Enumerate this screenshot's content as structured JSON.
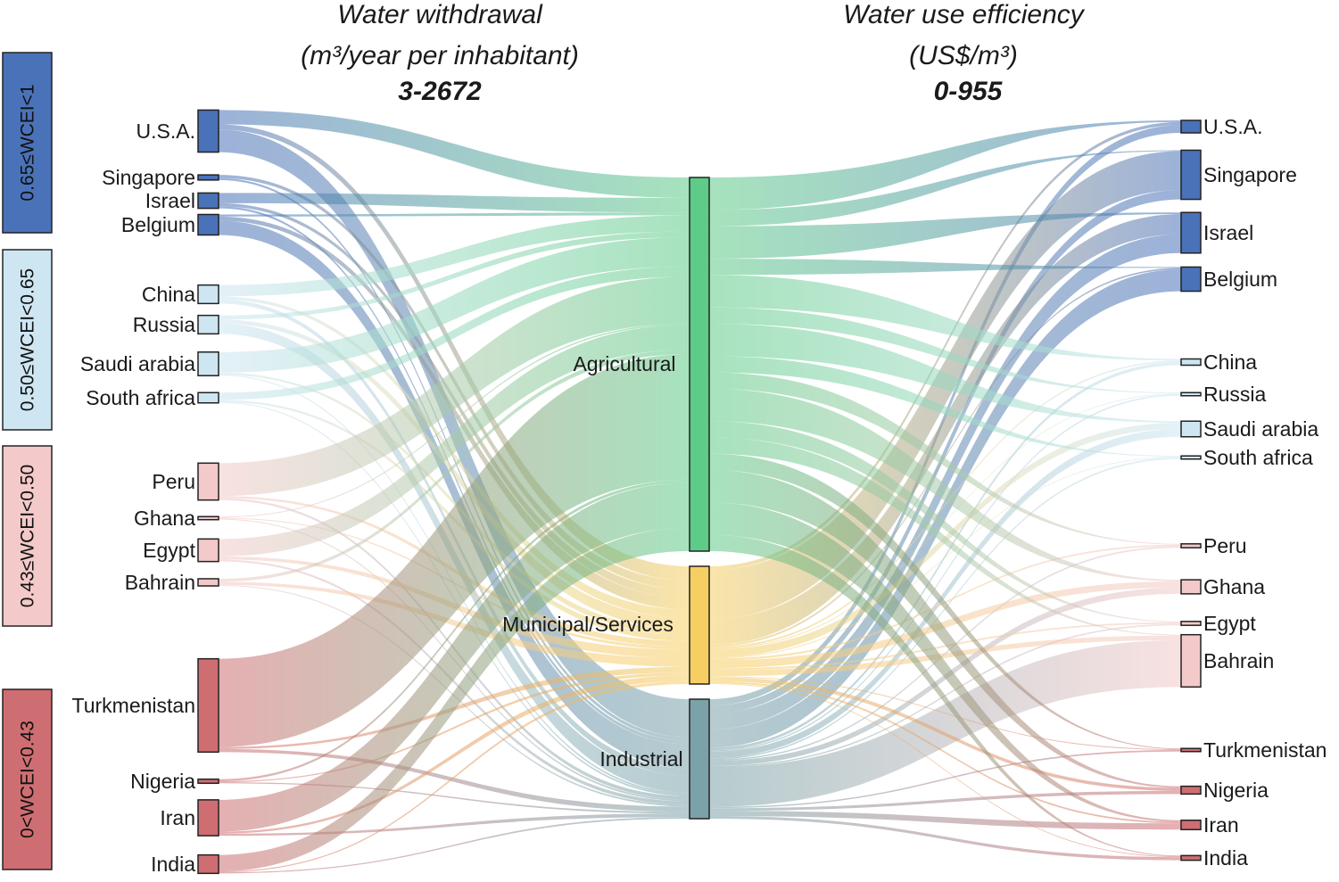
{
  "titles": {
    "left": {
      "line1": "Water withdrawal",
      "line2": "(m³/year per inhabitant)",
      "line3": "3-2672"
    },
    "right": {
      "line1": "Water use efficiency",
      "line2": "(US$/m³)",
      "line3": "0-955"
    }
  },
  "groups": [
    {
      "id": "g1",
      "label": "0.65≤WCEI<1",
      "color": "#4a72b8"
    },
    {
      "id": "g2",
      "label": "0.50≤WCEI<0.65",
      "color": "#cde6f2"
    },
    {
      "id": "g3",
      "label": "0.43≤WCEI<0.50",
      "color": "#f3c9c9"
    },
    {
      "id": "g4",
      "label": "0<WCEI<0.43",
      "color": "#cf6e72"
    }
  ],
  "sectors": [
    {
      "id": "agr",
      "label": "Agricultural",
      "color": "#5ecb88"
    },
    {
      "id": "mun",
      "label": "Municipal/Services",
      "color": "#f6cf62"
    },
    {
      "id": "ind",
      "label": "Industrial",
      "color": "#7aa2a8"
    }
  ],
  "countries": [
    {
      "name": "U.S.A.",
      "group": "g1"
    },
    {
      "name": "Singapore",
      "group": "g1"
    },
    {
      "name": "Israel",
      "group": "g1"
    },
    {
      "name": "Belgium",
      "group": "g1"
    },
    {
      "name": "China",
      "group": "g2"
    },
    {
      "name": "Russia",
      "group": "g2"
    },
    {
      "name": "Saudi arabia",
      "group": "g2"
    },
    {
      "name": "South africa",
      "group": "g2"
    },
    {
      "name": "Peru",
      "group": "g3"
    },
    {
      "name": "Ghana",
      "group": "g3"
    },
    {
      "name": "Egypt",
      "group": "g3"
    },
    {
      "name": "Bahrain",
      "group": "g3"
    },
    {
      "name": "Turkmenistan",
      "group": "g4"
    },
    {
      "name": "Nigeria",
      "group": "g4"
    },
    {
      "name": "Iran",
      "group": "g4"
    },
    {
      "name": "India",
      "group": "g4"
    }
  ],
  "withdrawal_flows": [
    {
      "country": "U.S.A.",
      "agr": 14,
      "mun": 5,
      "ind": 22
    },
    {
      "country": "Singapore",
      "agr": 0,
      "mun": 3,
      "ind": 2
    },
    {
      "country": "Israel",
      "agr": 10,
      "mun": 3,
      "ind": 2
    },
    {
      "country": "Belgium",
      "agr": 2,
      "mun": 4,
      "ind": 14
    },
    {
      "country": "China",
      "agr": 11,
      "mun": 3,
      "ind": 4
    },
    {
      "country": "Russia",
      "agr": 4,
      "mun": 4,
      "ind": 10
    },
    {
      "country": "Saudi arabia",
      "agr": 20,
      "mun": 2,
      "ind": 1
    },
    {
      "country": "South africa",
      "agr": 7,
      "mun": 2,
      "ind": 1
    },
    {
      "country": "Peru",
      "agr": 32,
      "mun": 2,
      "ind": 2
    },
    {
      "country": "Ghana",
      "agr": 1,
      "mun": 1,
      "ind": 1
    },
    {
      "country": "Egypt",
      "agr": 17,
      "mun": 3,
      "ind": 2
    },
    {
      "country": "Bahrain",
      "agr": 3,
      "mun": 3,
      "ind": 1
    },
    {
      "country": "Turkmenistan",
      "agr": 86,
      "mun": 2,
      "ind": 3
    },
    {
      "country": "Nigeria",
      "agr": 2,
      "mun": 1,
      "ind": 1
    },
    {
      "country": "Iran",
      "agr": 31,
      "mun": 2,
      "ind": 2
    },
    {
      "country": "India",
      "agr": 16,
      "mun": 1,
      "ind": 1
    }
  ],
  "efficiency_flows": [
    {
      "country": "U.S.A.",
      "agr": 1,
      "mun": 2,
      "ind": 5
    },
    {
      "country": "Singapore",
      "agr": 0.5,
      "mun": 25,
      "ind": 6
    },
    {
      "country": "Israel",
      "agr": 1,
      "mun": 13,
      "ind": 12
    },
    {
      "country": "Belgium",
      "agr": 0.5,
      "mun": 1,
      "ind": 14
    },
    {
      "country": "China",
      "agr": 1,
      "mun": 1,
      "ind": 2
    },
    {
      "country": "Russia",
      "agr": 0.5,
      "mun": 0.5,
      "ind": 1
    },
    {
      "country": "Saudi arabia",
      "agr": 1,
      "mun": 4,
      "ind": 5
    },
    {
      "country": "South africa",
      "agr": 0.5,
      "mun": 0.5,
      "ind": 1
    },
    {
      "country": "Peru",
      "agr": 0.5,
      "mun": 1,
      "ind": 1
    },
    {
      "country": "Ghana",
      "agr": 1,
      "mun": 4,
      "ind": 4
    },
    {
      "country": "Egypt",
      "agr": 0.5,
      "mun": 1,
      "ind": 1
    },
    {
      "country": "Bahrain",
      "agr": 0.5,
      "mun": 3,
      "ind": 30
    },
    {
      "country": "Turkmenistan",
      "agr": 0.5,
      "mun": 0.5,
      "ind": 1
    },
    {
      "country": "Nigeria",
      "agr": 1,
      "mun": 2,
      "ind": 2
    },
    {
      "country": "Iran",
      "agr": 1,
      "mun": 1,
      "ind": 4
    },
    {
      "country": "India",
      "agr": 0.5,
      "mun": 0.5,
      "ind": 2
    }
  ]
}
